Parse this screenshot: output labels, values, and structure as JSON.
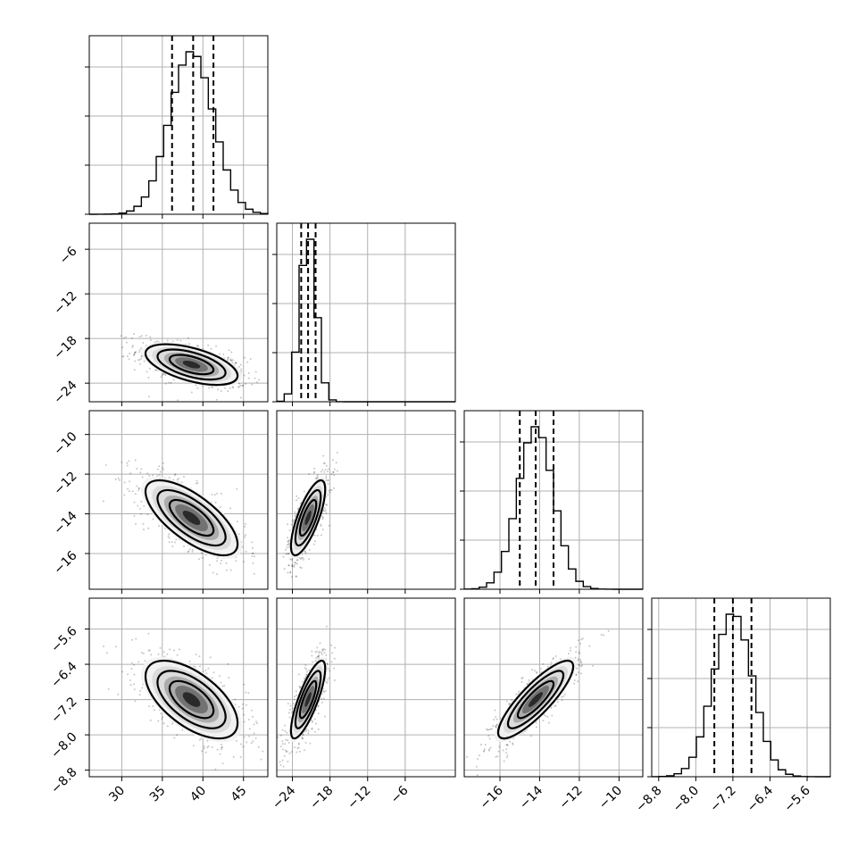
{
  "chart_data": {
    "type": "corner",
    "grid": true,
    "parameters": [
      {
        "range": [
          26,
          48
        ],
        "ticks": [
          30,
          35,
          40,
          45
        ],
        "tick_labels": [
          "30",
          "35",
          "40",
          "45"
        ],
        "mean": 38.6,
        "std": 2.7,
        "quantiles": [
          36.2,
          38.8,
          41.3
        ]
      },
      {
        "range": [
          -26.5,
          2
        ],
        "ticks": [
          -24,
          -18,
          -12,
          -6
        ],
        "tick_labels": [
          "−24",
          "−18",
          "−12",
          "−6"
        ],
        "mean": -21.5,
        "std": 1.3,
        "quantiles": [
          -22.6,
          -21.5,
          -20.3
        ]
      },
      {
        "range": [
          -17.8,
          -8.8
        ],
        "ticks": [
          -16,
          -14,
          -12,
          -10
        ],
        "tick_labels": [
          "−16",
          "−14",
          "−12",
          "−10"
        ],
        "mean": -14.2,
        "std": 0.9,
        "quantiles": [
          -15.0,
          -14.2,
          -13.3
        ]
      },
      {
        "range": [
          -8.95,
          -5.1
        ],
        "ticks": [
          -8.8,
          -8.0,
          -7.2,
          -6.4,
          -5.6
        ],
        "tick_labels": [
          "−8.8",
          "−8.0",
          "−7.2",
          "−6.4",
          "−5.6"
        ],
        "mean": -7.2,
        "std": 0.42,
        "quantiles": [
          -7.6,
          -7.2,
          -6.8
        ]
      }
    ],
    "correlations": [
      {
        "pair": [
          1,
          0
        ],
        "rho": -0.55
      },
      {
        "pair": [
          2,
          0
        ],
        "rho": -0.7
      },
      {
        "pair": [
          2,
          1
        ],
        "rho": 0.75
      },
      {
        "pair": [
          3,
          0
        ],
        "rho": -0.6
      },
      {
        "pair": [
          3,
          1
        ],
        "rho": 0.8
      },
      {
        "pair": [
          3,
          2
        ],
        "rho": 0.85
      }
    ],
    "y_tick_labels_row": {
      "1": [
        "−6",
        "−12",
        "−18",
        "−24"
      ],
      "2": [
        "−10",
        "−12",
        "−14",
        "−16"
      ],
      "3": [
        "−5.6",
        "−6.4",
        "−7.2",
        "−8.0",
        "−8.8"
      ]
    },
    "y_ticks_row": {
      "1": [
        -6,
        -12,
        -18,
        -24
      ],
      "2": [
        -10,
        -12,
        -14,
        -16
      ],
      "3": [
        -5.6,
        -6.4,
        -7.2,
        -8.0,
        -8.8
      ]
    },
    "y_range_row": {
      "1": [
        -26.5,
        -2.5
      ],
      "2": [
        -17.8,
        -8.8
      ],
      "3": [
        -8.95,
        -4.9
      ]
    }
  }
}
